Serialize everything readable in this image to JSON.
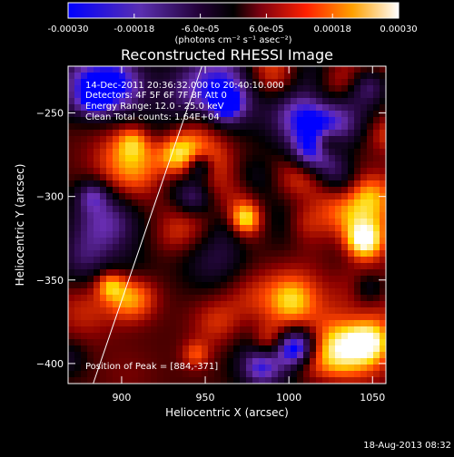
{
  "colorbar": {
    "ticks": [
      "-0.00030",
      "-0.00018",
      "-6.0e-05",
      "6.0e-05",
      "0.00018",
      "0.00030"
    ],
    "tick_values": [
      -0.0003,
      -0.00018,
      -6e-05,
      6e-05,
      0.00018,
      0.0003
    ],
    "range": [
      -0.0003,
      0.0003
    ],
    "unit_label": "(photons cm⁻² s⁻¹ asec⁻²)"
  },
  "chart_data": {
    "type": "heatmap",
    "title": "Reconstructed RHESSI Image",
    "xlabel": "Heliocentric X (arcsec)",
    "ylabel": "Heliocentric Y (arcsec)",
    "xlim": [
      868,
      1058
    ],
    "ylim": [
      -412,
      -222
    ],
    "x_ticks": [
      900,
      950,
      1000,
      1050
    ],
    "y_ticks": [
      -250,
      -300,
      -350,
      -400
    ],
    "colormap_stops": [
      "#0000ff",
      "#6a2fb5",
      "#2a0845",
      "#000000",
      "#8b0000",
      "#ff4500",
      "#ffd700",
      "#ffffff"
    ],
    "limb_line": [
      [
        883,
        -412
      ],
      [
        948,
        -222
      ]
    ],
    "peak": [
      884,
      -371
    ],
    "annotations": {
      "time": "14-Dec-2011 20:36:32.000 to 20:40:10.000",
      "detectors": "Detectors: 4F 5F 6F 7F 8F  Att 0",
      "energy": "Energy Range: 12.0 - 25.0 keV",
      "clean": "Clean     Total counts: 1.64E+04",
      "peak_label": "Position of Peak = [884,-371]"
    }
  },
  "footer": {
    "timestamp": "18-Aug-2013 08:32"
  }
}
